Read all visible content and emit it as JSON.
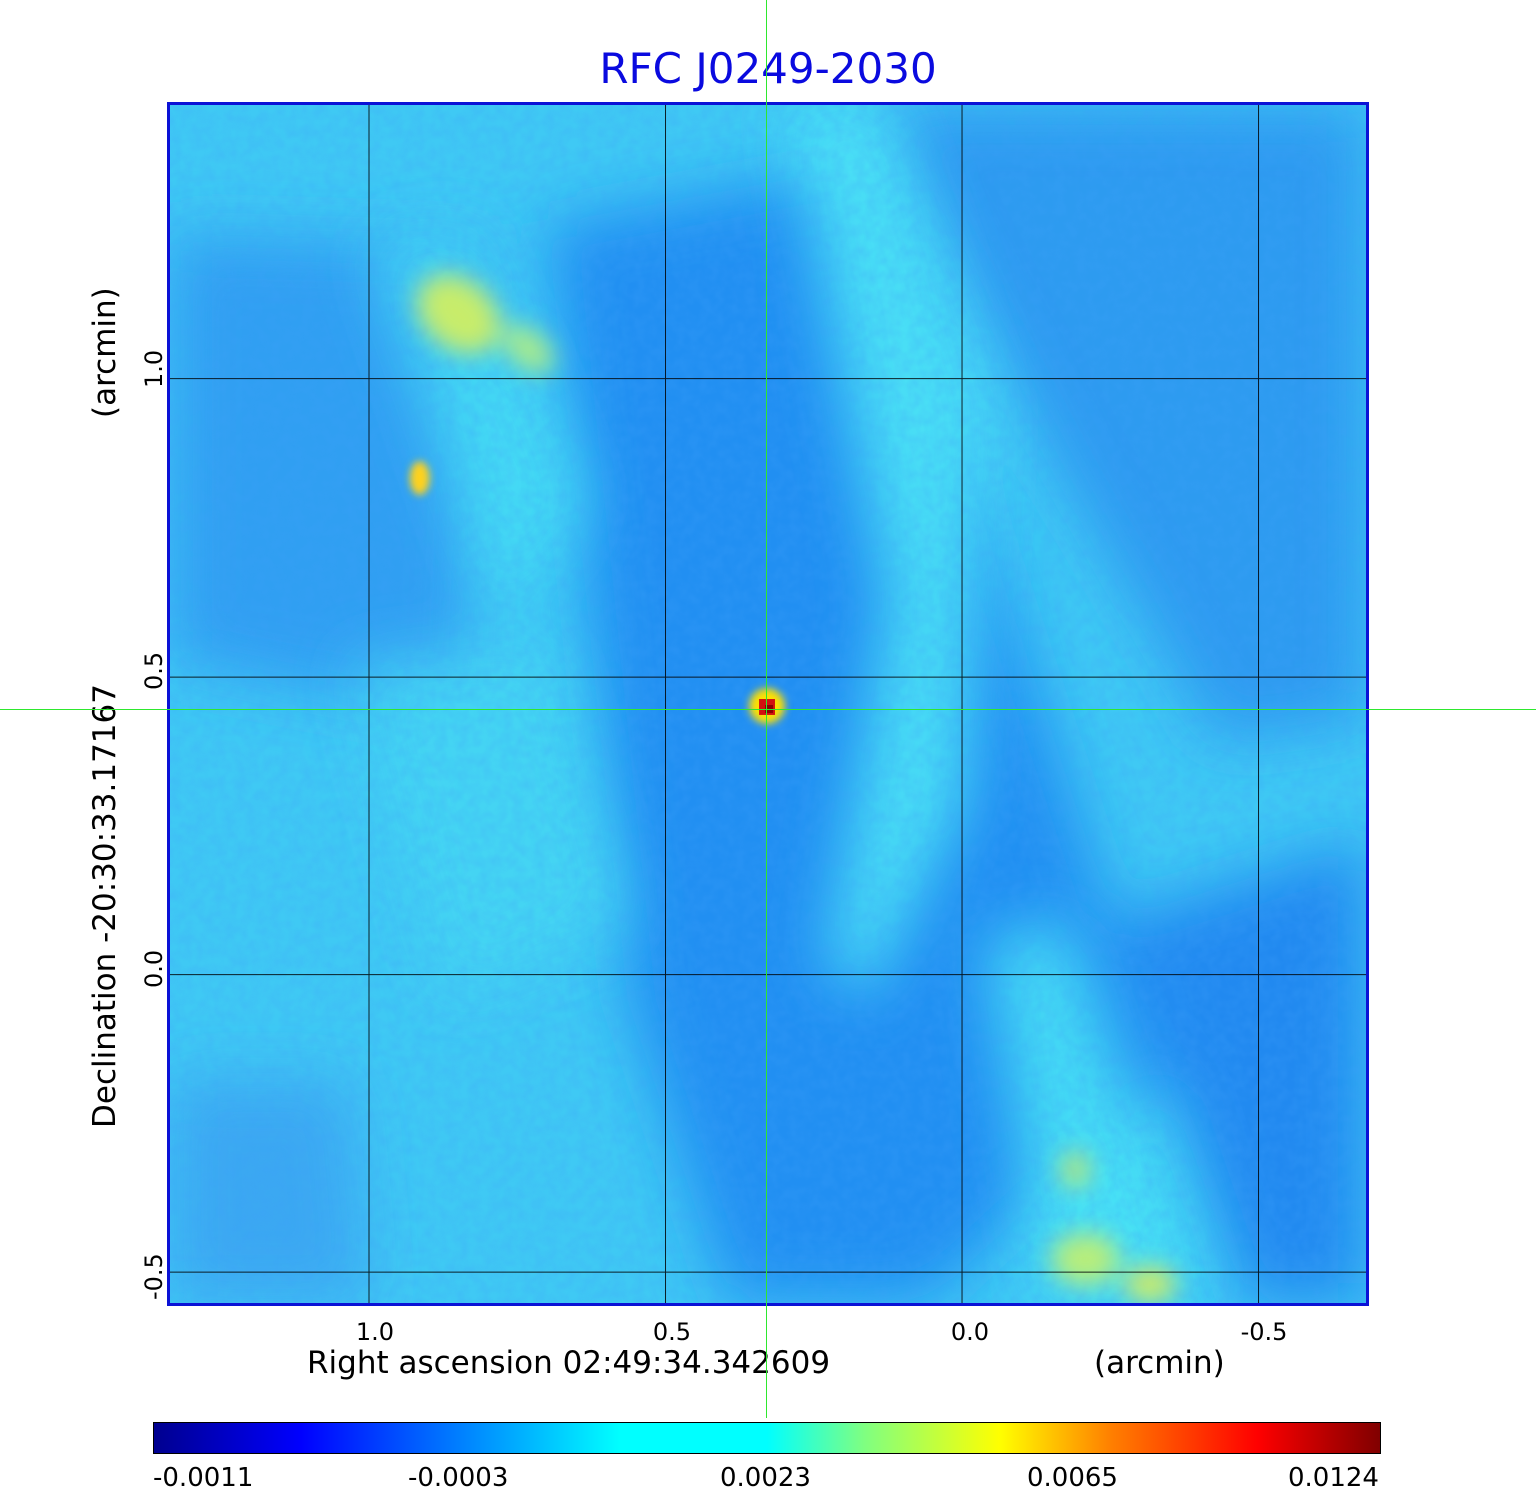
{
  "title": "RFC J0249-2030",
  "x_axis": {
    "label": "Right ascension  02:49:34.342609",
    "unit": "(arcmin)",
    "ticks": [
      "1.0",
      "0.5",
      "0.0",
      "-0.5"
    ]
  },
  "y_axis": {
    "label": "Declination  -20:30:33.17167",
    "unit": "(arcmin)",
    "ticks": [
      "1.0",
      "0.5",
      "0.0",
      "-0.5"
    ]
  },
  "colorbar": {
    "ticks": [
      "-0.0011",
      "-0.0003",
      "0.0023",
      "0.0065",
      "0.0124"
    ]
  },
  "colors": {
    "title": "#0a0adf",
    "frame": "#0b12d6",
    "crosshair": "#2ee82e",
    "background_field": "#37d8f4"
  }
}
